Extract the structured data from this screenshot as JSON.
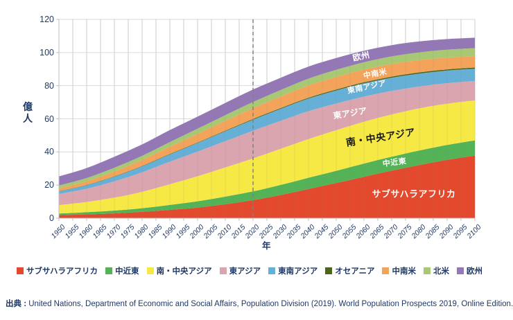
{
  "chart_data": {
    "type": "area",
    "stacked": true,
    "xlabel": "年",
    "ylabel": "億人",
    "x_range": [
      1950,
      2100
    ],
    "ylim": [
      0,
      120
    ],
    "grid": true,
    "legend_position": "bottom",
    "projection_divider_year": 2020,
    "y_ticks": [
      0,
      20,
      40,
      60,
      80,
      100,
      120
    ],
    "x_ticks": [
      1950,
      1955,
      1960,
      1965,
      1970,
      1975,
      1980,
      1985,
      1990,
      1995,
      2000,
      2005,
      2010,
      2015,
      2020,
      2025,
      2030,
      2035,
      2040,
      2045,
      2050,
      2055,
      2060,
      2065,
      2070,
      2075,
      2080,
      2085,
      2090,
      2095,
      2100
    ],
    "x": [
      1950,
      1960,
      1970,
      1980,
      1990,
      2000,
      2010,
      2020,
      2030,
      2040,
      2050,
      2060,
      2070,
      2080,
      2090,
      2100
    ],
    "series": [
      {
        "key": "subsaharan_africa",
        "name": "サブサハラアフリカ",
        "color": "#E2492D",
        "values": [
          1.8,
          2.3,
          2.9,
          3.8,
          5.0,
          6.4,
          8.4,
          10.9,
          14.0,
          17.6,
          21.2,
          25.0,
          28.7,
          32.1,
          35.2,
          37.8
        ]
      },
      {
        "key": "middle_east",
        "name": "中近東",
        "color": "#54B257",
        "values": [
          1.0,
          1.3,
          1.7,
          2.2,
          3.0,
          3.8,
          4.6,
          5.3,
          6.1,
          6.8,
          7.4,
          8.0,
          8.4,
          8.8,
          9.0,
          9.2
        ]
      },
      {
        "key": "south_central_asia",
        "name": "南・中央アジア",
        "color": "#F6E945",
        "values": [
          5.1,
          6.2,
          7.8,
          9.9,
          12.5,
          15.1,
          17.6,
          19.9,
          21.8,
          23.4,
          24.5,
          25.2,
          25.5,
          25.4,
          24.9,
          24.1
        ]
      },
      {
        "key": "east_asia",
        "name": "東アジア",
        "color": "#DBA5AF",
        "values": [
          6.7,
          8.0,
          9.9,
          11.8,
          13.6,
          14.9,
          15.9,
          16.7,
          16.9,
          16.8,
          16.1,
          15.2,
          14.2,
          13.2,
          12.4,
          11.8
        ]
      },
      {
        "key": "southeast_asia",
        "name": "東南アジア",
        "color": "#66AFD6",
        "values": [
          1.6,
          2.1,
          2.8,
          3.6,
          4.4,
          5.2,
          6.0,
          6.7,
          7.2,
          7.6,
          7.9,
          8.0,
          8.0,
          7.8,
          7.6,
          7.3
        ]
      },
      {
        "key": "oceania",
        "name": "オセアニア",
        "color": "#4C661C",
        "values": [
          0.13,
          0.16,
          0.2,
          0.23,
          0.27,
          0.31,
          0.37,
          0.43,
          0.48,
          0.53,
          0.57,
          0.62,
          0.66,
          0.7,
          0.72,
          0.75
        ]
      },
      {
        "key": "latin_america",
        "name": "中南米",
        "color": "#F3A35A",
        "values": [
          1.7,
          2.2,
          2.9,
          3.6,
          4.4,
          5.2,
          5.9,
          6.5,
          7.0,
          7.4,
          7.6,
          7.7,
          7.6,
          7.4,
          7.1,
          6.8
        ]
      },
      {
        "key": "north_america",
        "name": "北米",
        "color": "#A8C873",
        "values": [
          1.7,
          2.0,
          2.3,
          2.5,
          2.8,
          3.1,
          3.4,
          3.7,
          3.9,
          4.1,
          4.3,
          4.4,
          4.6,
          4.7,
          4.8,
          4.9
        ]
      },
      {
        "key": "europe",
        "name": "欧州",
        "color": "#9478B5",
        "values": [
          5.5,
          6.0,
          6.6,
          6.9,
          7.2,
          7.3,
          7.4,
          7.5,
          7.4,
          7.3,
          7.1,
          7.0,
          6.8,
          6.6,
          6.4,
          6.3
        ]
      }
    ],
    "area_labels": [
      {
        "key": "europe",
        "text": "欧州",
        "year": 2059,
        "value": 98,
        "color": "#FFFFFF",
        "rotate": -12,
        "size": 12
      },
      {
        "key": "latin_america",
        "text": "中南米",
        "year": 2064,
        "value": 87.5,
        "color": "#FFFFFF",
        "rotate": -11,
        "size": 11
      },
      {
        "key": "southeast_asia",
        "text": "東南アジア",
        "year": 2061,
        "value": 79.5,
        "color": "#FFFFFF",
        "rotate": -12,
        "size": 11
      },
      {
        "key": "east_asia",
        "text": "東アジア",
        "year": 2055,
        "value": 63.5,
        "color": "#FFFFFF",
        "rotate": -9,
        "size": 12
      },
      {
        "key": "south_central_asia",
        "text": "南・中央アジア",
        "year": 2066,
        "value": 49,
        "color": "#1A1A1A",
        "rotate": -9,
        "size": 14
      },
      {
        "key": "middle_east",
        "text": "中近東",
        "year": 2071,
        "value": 34,
        "color": "#FFFFFF",
        "rotate": -7,
        "size": 11
      },
      {
        "key": "subsaharan_africa",
        "text": "サブサハラアフリカ",
        "year": 2078,
        "value": 15,
        "color": "#FFFFFF",
        "rotate": 0,
        "size": 13
      }
    ],
    "palette": {
      "text": "#1F3864",
      "grid": "#D9D9D9",
      "axis": "#BFBFBF",
      "divider": "#808080"
    }
  },
  "source": {
    "label": "出典 : ",
    "text": "United Nations, Department of Economic and Social Affairs, Population Division (2019). World Population Prospects 2019, Online Edition."
  }
}
